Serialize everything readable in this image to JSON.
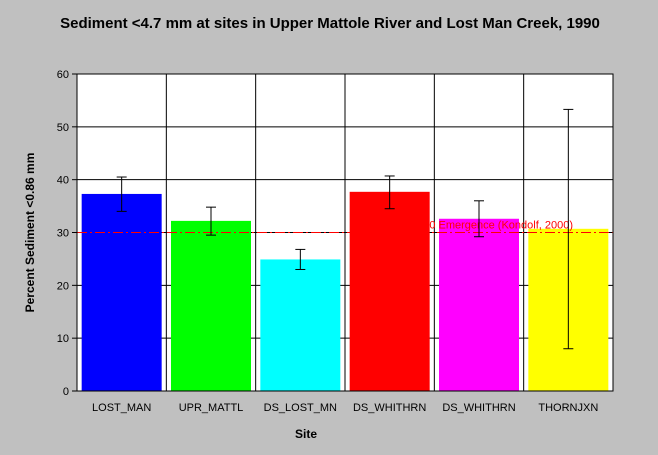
{
  "chart_data": {
    "type": "bar",
    "title": "Sediment <4.7 mm at sites in Upper Mattole River and Lost Man Creek, 1990",
    "xlabel": "Site",
    "ylabel": "Percent Sediment <0.86 mm",
    "ylim": [
      0,
      60
    ],
    "yticks": [
      0,
      10,
      20,
      30,
      40,
      50,
      60
    ],
    "grid": true,
    "categories": [
      "LOST_MAN",
      "UPR_MATTL",
      "DS_LOST_MN",
      "DS_WHITHRN",
      "DS_WHITHRN",
      "THORNJXN"
    ],
    "values": [
      37.3,
      32.2,
      24.9,
      37.7,
      32.6,
      30.7
    ],
    "error_low": [
      34.0,
      29.5,
      23.0,
      34.5,
      29.2,
      8.0
    ],
    "error_high": [
      40.5,
      34.8,
      26.8,
      40.7,
      36.0,
      53.3
    ],
    "colors": [
      "#0000ff",
      "#00ff00",
      "#00ffff",
      "#ff0000",
      "#ff00ff",
      "#ffff00"
    ],
    "reference_line": {
      "value": 30,
      "label": "0 Emergence (Kondolf, 2000)",
      "color": "#ff0000"
    }
  }
}
